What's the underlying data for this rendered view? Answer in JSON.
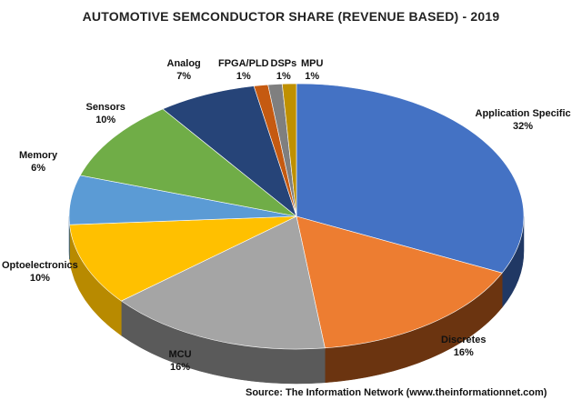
{
  "chart_data": {
    "type": "pie",
    "title": "AUTOMOTIVE SEMCONDUCTOR SHARE (REVENUE BASED) - 2019",
    "slices": [
      {
        "label": "Application Specific",
        "value": 32,
        "pct_label": "32%",
        "color": "#4472C4",
        "side": "#203864"
      },
      {
        "label": "Discretes",
        "value": 16,
        "pct_label": "16%",
        "color": "#ED7D31",
        "side": "#6B3410"
      },
      {
        "label": "MCU",
        "value": 16,
        "pct_label": "16%",
        "color": "#A5A5A5",
        "side": "#5A5A5A"
      },
      {
        "label": "Optoelectronics",
        "value": 10,
        "pct_label": "10%",
        "color": "#FFC000",
        "side": "#B88A00"
      },
      {
        "label": "Memory",
        "value": 6,
        "pct_label": "6%",
        "color": "#5B9BD5",
        "side": "#2E5C88"
      },
      {
        "label": "Sensors",
        "value": 10,
        "pct_label": "10%",
        "color": "#70AD47",
        "side": "#3F6A25"
      },
      {
        "label": "Analog",
        "value": 7,
        "pct_label": "7%",
        "color": "#264478",
        "side": "#13233F"
      },
      {
        "label": "FPGA/PLD",
        "value": 1,
        "pct_label": "1%",
        "color": "#C55A11",
        "side": "#6B3008"
      },
      {
        "label": "DSPs",
        "value": 1,
        "pct_label": "1%",
        "color": "#7F7F7F",
        "side": "#444444"
      },
      {
        "label": "MPU",
        "value": 1,
        "pct_label": "1%",
        "color": "#BF9000",
        "side": "#6E5300"
      }
    ],
    "legend": "none",
    "source": "Source: The Information Network (www.theinformationnet.com)"
  }
}
